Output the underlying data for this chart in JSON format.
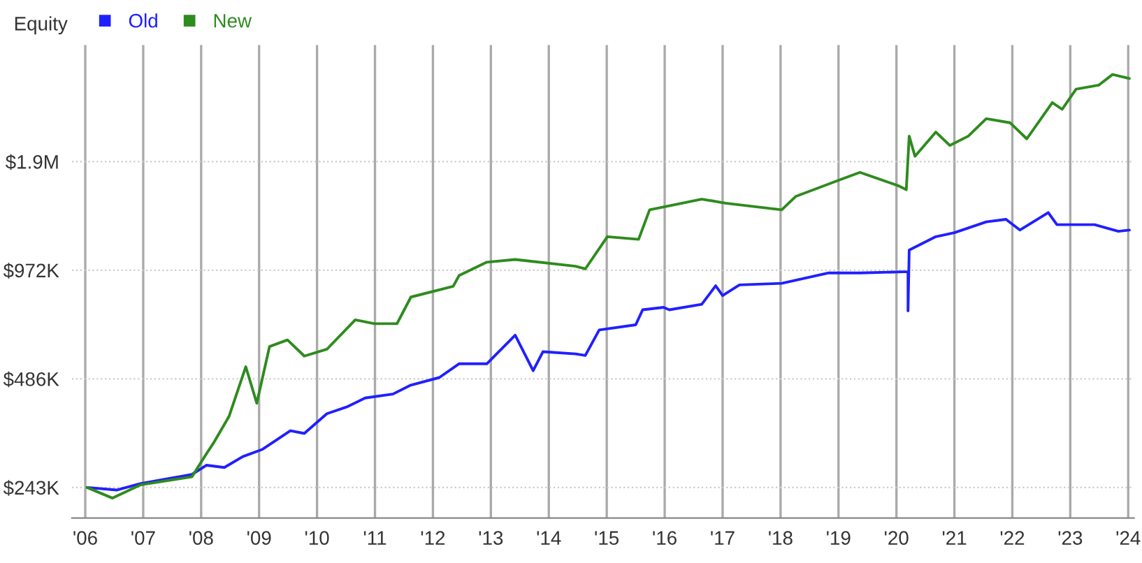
{
  "chart_data": {
    "type": "line",
    "ylabel": "Equity",
    "log": "y",
    "grid": true,
    "legend": "top left",
    "marker": "none",
    "line_style": "solid",
    "xlim": [
      2005.77,
      2024.1
    ],
    "ylim": [
      200000,
      4090000
    ],
    "xticks": [
      {
        "value": 2006,
        "label": "'06"
      },
      {
        "value": 2007,
        "label": "'07"
      },
      {
        "value": 2008,
        "label": "'08"
      },
      {
        "value": 2009,
        "label": "'09"
      },
      {
        "value": 2010,
        "label": "'10"
      },
      {
        "value": 2011,
        "label": "'11"
      },
      {
        "value": 2012,
        "label": "'12"
      },
      {
        "value": 2013,
        "label": "'13"
      },
      {
        "value": 2014,
        "label": "'14"
      },
      {
        "value": 2015,
        "label": "'15"
      },
      {
        "value": 2016,
        "label": "'16"
      },
      {
        "value": 2017,
        "label": "'17"
      },
      {
        "value": 2018,
        "label": "'18"
      },
      {
        "value": 2019,
        "label": "'19"
      },
      {
        "value": 2020,
        "label": "'20"
      },
      {
        "value": 2021,
        "label": "'21"
      },
      {
        "value": 2022,
        "label": "'22"
      },
      {
        "value": 2023,
        "label": "'23"
      },
      {
        "value": 2024,
        "label": "'24"
      }
    ],
    "yticks": [
      {
        "value": 243000,
        "label": "$243K"
      },
      {
        "value": 486000,
        "label": "$486K"
      },
      {
        "value": 972000,
        "label": "$972K"
      },
      {
        "value": 1944000,
        "label": "$1.9M"
      }
    ],
    "series": [
      {
        "name": "Old",
        "color": "#2020ff",
        "x": [
          2006.03,
          2006.54,
          2006.95,
          2007.84,
          2008.09,
          2008.4,
          2008.72,
          2009.06,
          2009.54,
          2009.78,
          2010.17,
          2010.51,
          2010.83,
          2011.31,
          2011.62,
          2012.11,
          2012.45,
          2012.93,
          2013.42,
          2013.73,
          2013.9,
          2014.46,
          2014.63,
          2014.87,
          2015.5,
          2015.62,
          2015.98,
          2016.08,
          2016.64,
          2016.88,
          2017.0,
          2017.29,
          2018.02,
          2018.82,
          2019.37,
          2020.2,
          2020.2,
          2020.22,
          2020.68,
          2021.0,
          2021.55,
          2021.89,
          2022.13,
          2022.62,
          2022.77,
          2023.42,
          2023.83,
          2024.02
        ],
        "values": [
          243000,
          239000,
          249000,
          264000,
          280000,
          276000,
          296000,
          310000,
          349000,
          343000,
          389000,
          406000,
          430000,
          441000,
          467000,
          490000,
          535000,
          535000,
          642000,
          512000,
          578000,
          570000,
          564000,
          664000,
          686000,
          755000,
          767000,
          755000,
          782000,
          880000,
          827000,
          885000,
          894000,
          955000,
          955000,
          963000,
          750000,
          1105000,
          1204000,
          1235000,
          1323000,
          1345000,
          1256000,
          1404000,
          1300000,
          1300000,
          1246000,
          1256000
        ]
      },
      {
        "name": "New",
        "color": "#2e8b1e",
        "x": [
          2006.03,
          2006.47,
          2006.95,
          2007.84,
          2008.09,
          2008.21,
          2008.48,
          2008.77,
          2008.96,
          2009.18,
          2009.49,
          2009.78,
          2010.17,
          2010.66,
          2010.99,
          2011.38,
          2011.62,
          2012.35,
          2012.45,
          2012.93,
          2013.42,
          2014.46,
          2014.63,
          2015.01,
          2015.55,
          2015.74,
          2016.64,
          2017.05,
          2018.02,
          2018.26,
          2019.06,
          2019.37,
          2020.03,
          2020.17,
          2020.22,
          2020.32,
          2020.68,
          2020.92,
          2021.24,
          2021.55,
          2021.96,
          2022.25,
          2022.69,
          2022.86,
          2023.1,
          2023.49,
          2023.73,
          2024.02
        ],
        "values": [
          243000,
          227000,
          247000,
          260000,
          301000,
          322000,
          382000,
          525000,
          416000,
          597000,
          623000,
          562000,
          587000,
          708000,
          691000,
          691000,
          819000,
          877000,
          939000,
          1023000,
          1041000,
          997000,
          980000,
          1204000,
          1184000,
          1429000,
          1530000,
          1491000,
          1429000,
          1556000,
          1740000,
          1815000,
          1667000,
          1625000,
          2287000,
          2011000,
          2347000,
          2155000,
          2287000,
          2556000,
          2491000,
          2248000,
          2833000,
          2714000,
          3086000,
          3166000,
          3390000,
          3304000
        ]
      }
    ]
  }
}
